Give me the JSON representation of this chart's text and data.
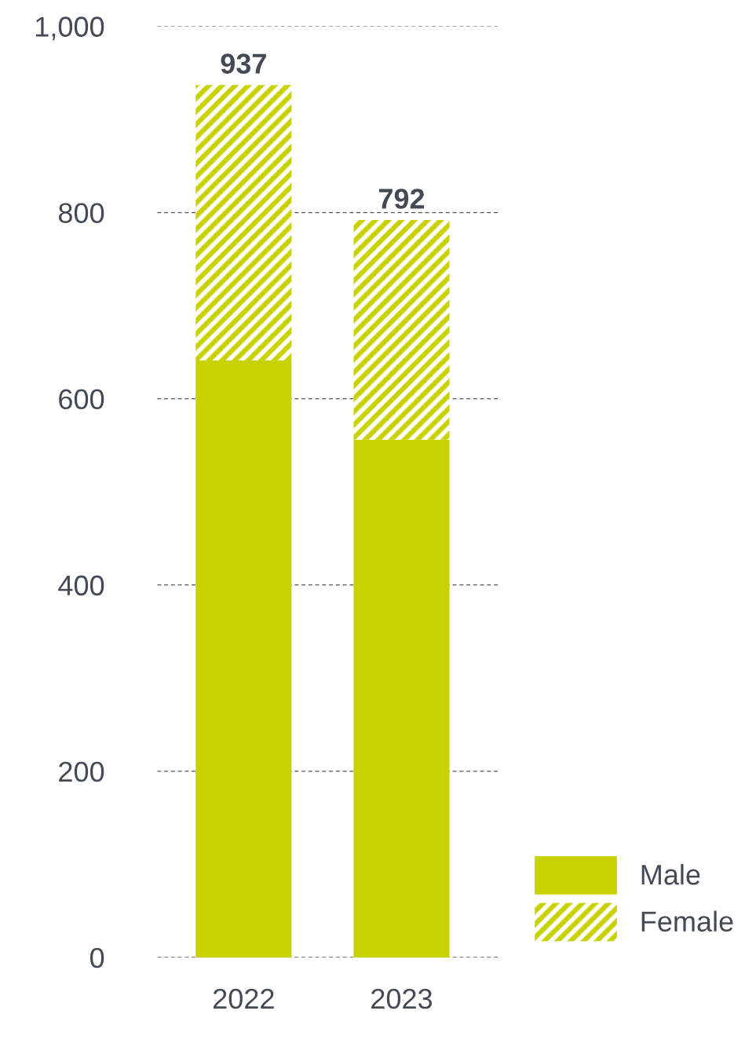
{
  "chart_data": {
    "type": "bar",
    "stacked": true,
    "categories": [
      "2022",
      "2023"
    ],
    "series": [
      {
        "name": "Male",
        "color": "#c8d200",
        "values": [
          641,
          556
        ]
      },
      {
        "name": "Female",
        "color": "#c8d200",
        "values": [
          296,
          236
        ]
      }
    ],
    "totals": [
      "937",
      "792"
    ],
    "ylim": [
      0,
      1000
    ],
    "yticks": [
      0,
      200,
      400,
      600,
      800,
      {
        "value": 1000,
        "label": "1,000"
      }
    ],
    "grid": "y",
    "legend": "bottom right"
  }
}
